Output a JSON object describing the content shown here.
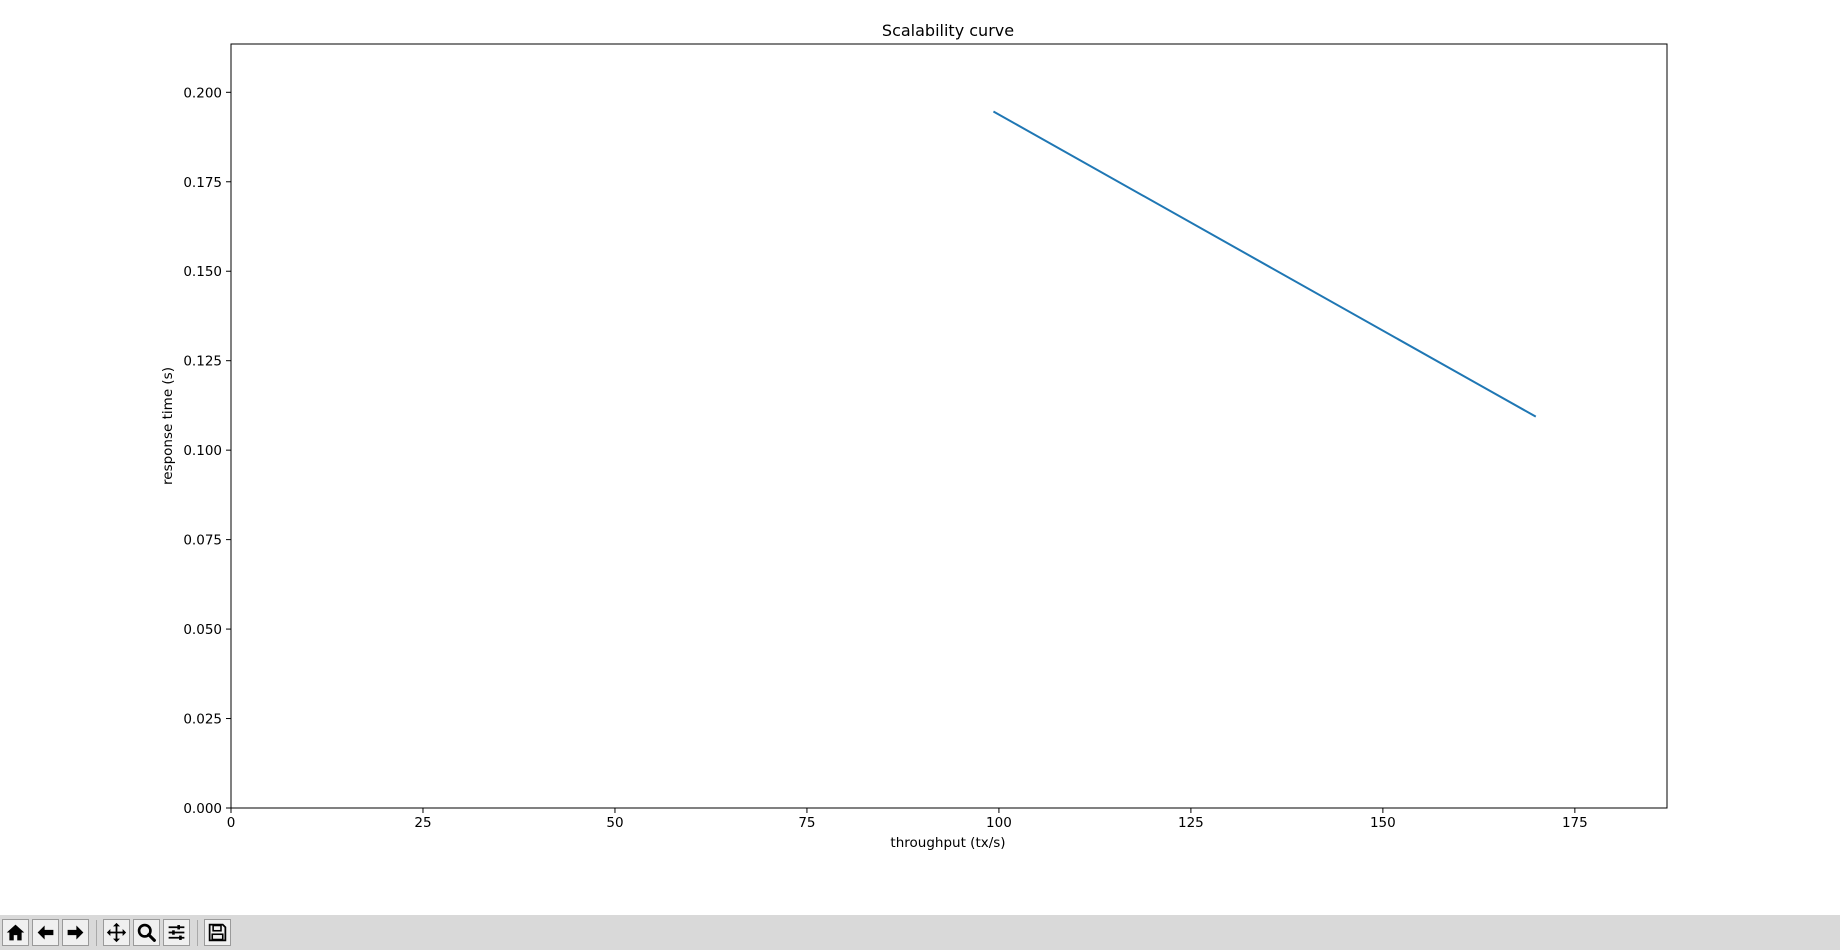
{
  "chart_data": {
    "type": "line",
    "title": "Scalability curve",
    "xlabel": "throughput (tx/s)",
    "ylabel": "response time (s)",
    "xlim": [
      0,
      187
    ],
    "ylim": [
      0,
      0.2135
    ],
    "xticks": [
      0,
      25,
      50,
      75,
      100,
      125,
      150,
      175
    ],
    "xtick_labels": [
      "0",
      "25",
      "50",
      "75",
      "100",
      "125",
      "150",
      "175"
    ],
    "yticks": [
      0.0,
      0.025,
      0.05,
      0.075,
      0.1,
      0.125,
      0.15,
      0.175,
      0.2
    ],
    "ytick_labels": [
      "0.000",
      "0.025",
      "0.050",
      "0.075",
      "0.100",
      "0.125",
      "0.150",
      "0.175",
      "0.200"
    ],
    "grid": false,
    "series": [
      {
        "color": "#1f77b4",
        "x": [
          99.4,
          169.8
        ],
        "y": [
          0.1945,
          0.1095
        ]
      }
    ]
  },
  "toolbar": {
    "buttons": [
      {
        "name": "home-button",
        "icon": "home-icon"
      },
      {
        "name": "back-button",
        "icon": "arrow-left-icon"
      },
      {
        "name": "forward-button",
        "icon": "arrow-right-icon"
      },
      {
        "name": "pan-button",
        "icon": "move-icon"
      },
      {
        "name": "zoom-button",
        "icon": "magnifier-icon"
      },
      {
        "name": "configure-subplots-button",
        "icon": "sliders-icon"
      },
      {
        "name": "save-button",
        "icon": "floppy-disk-icon"
      }
    ]
  }
}
